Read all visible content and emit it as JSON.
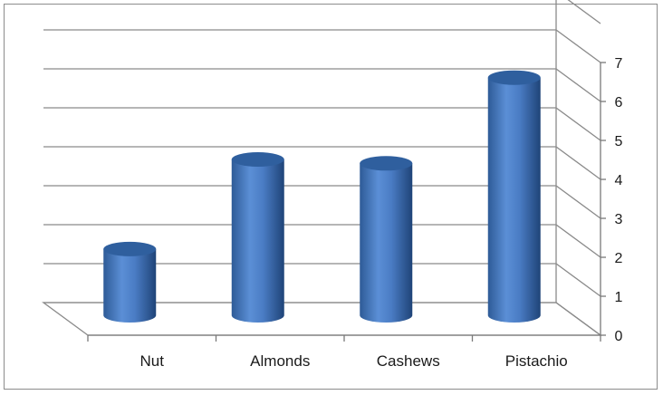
{
  "chart_data": {
    "type": "bar",
    "style": "3d-cylinder",
    "categories": [
      "Nut",
      "Almonds",
      "Cashews",
      "Pistachio"
    ],
    "values": [
      1.7,
      4.0,
      3.9,
      6.1
    ],
    "ylim": [
      0,
      7
    ],
    "yticks": [
      "0",
      "1",
      "2",
      "3",
      "4",
      "5",
      "6",
      "7"
    ],
    "y_axis_side": "right",
    "grid": true,
    "legend": "none",
    "bar_color": "#4a7cc4",
    "bar_top_color": "#2f5f9e"
  }
}
